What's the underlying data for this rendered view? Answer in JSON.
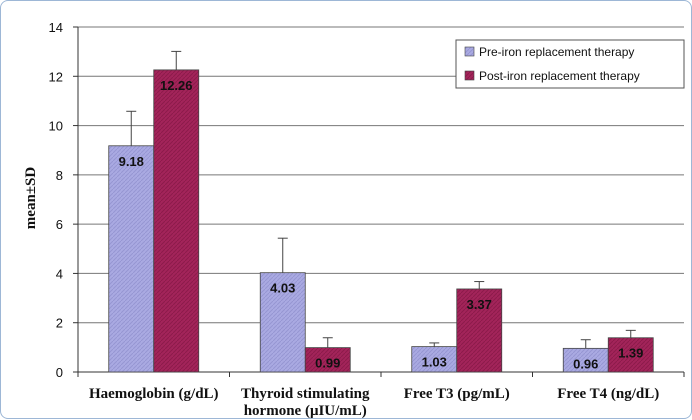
{
  "chart_data": {
    "type": "bar",
    "ylabel": "mean±SD",
    "ylim": [
      0,
      14
    ],
    "yticks": [
      0,
      2,
      4,
      6,
      8,
      10,
      12,
      14
    ],
    "grid": true,
    "legend_position": "top-right",
    "categories": [
      [
        "Haemoglobin (g/dL)"
      ],
      [
        "Thyroid stimulating",
        "hormone (μIU/mL)"
      ],
      [
        "Free T3 (pg/mL)"
      ],
      [
        "Free T4 (ng/dL)"
      ]
    ],
    "series": [
      {
        "name": "Pre-iron replacement therapy",
        "color": "#a8a8e0",
        "values": [
          9.18,
          4.03,
          1.03,
          0.96
        ],
        "labels": [
          "9.18",
          "4.03",
          "1.03",
          "0.96"
        ],
        "sd": [
          1.4,
          1.4,
          0.15,
          0.35
        ]
      },
      {
        "name": "Post-iron replacement therapy",
        "color": "#a3245a",
        "values": [
          12.26,
          0.99,
          3.37,
          1.39
        ],
        "labels": [
          "12.26",
          "0.99",
          "3.37",
          "1.39"
        ],
        "sd": [
          0.75,
          0.4,
          0.3,
          0.3
        ]
      }
    ]
  }
}
